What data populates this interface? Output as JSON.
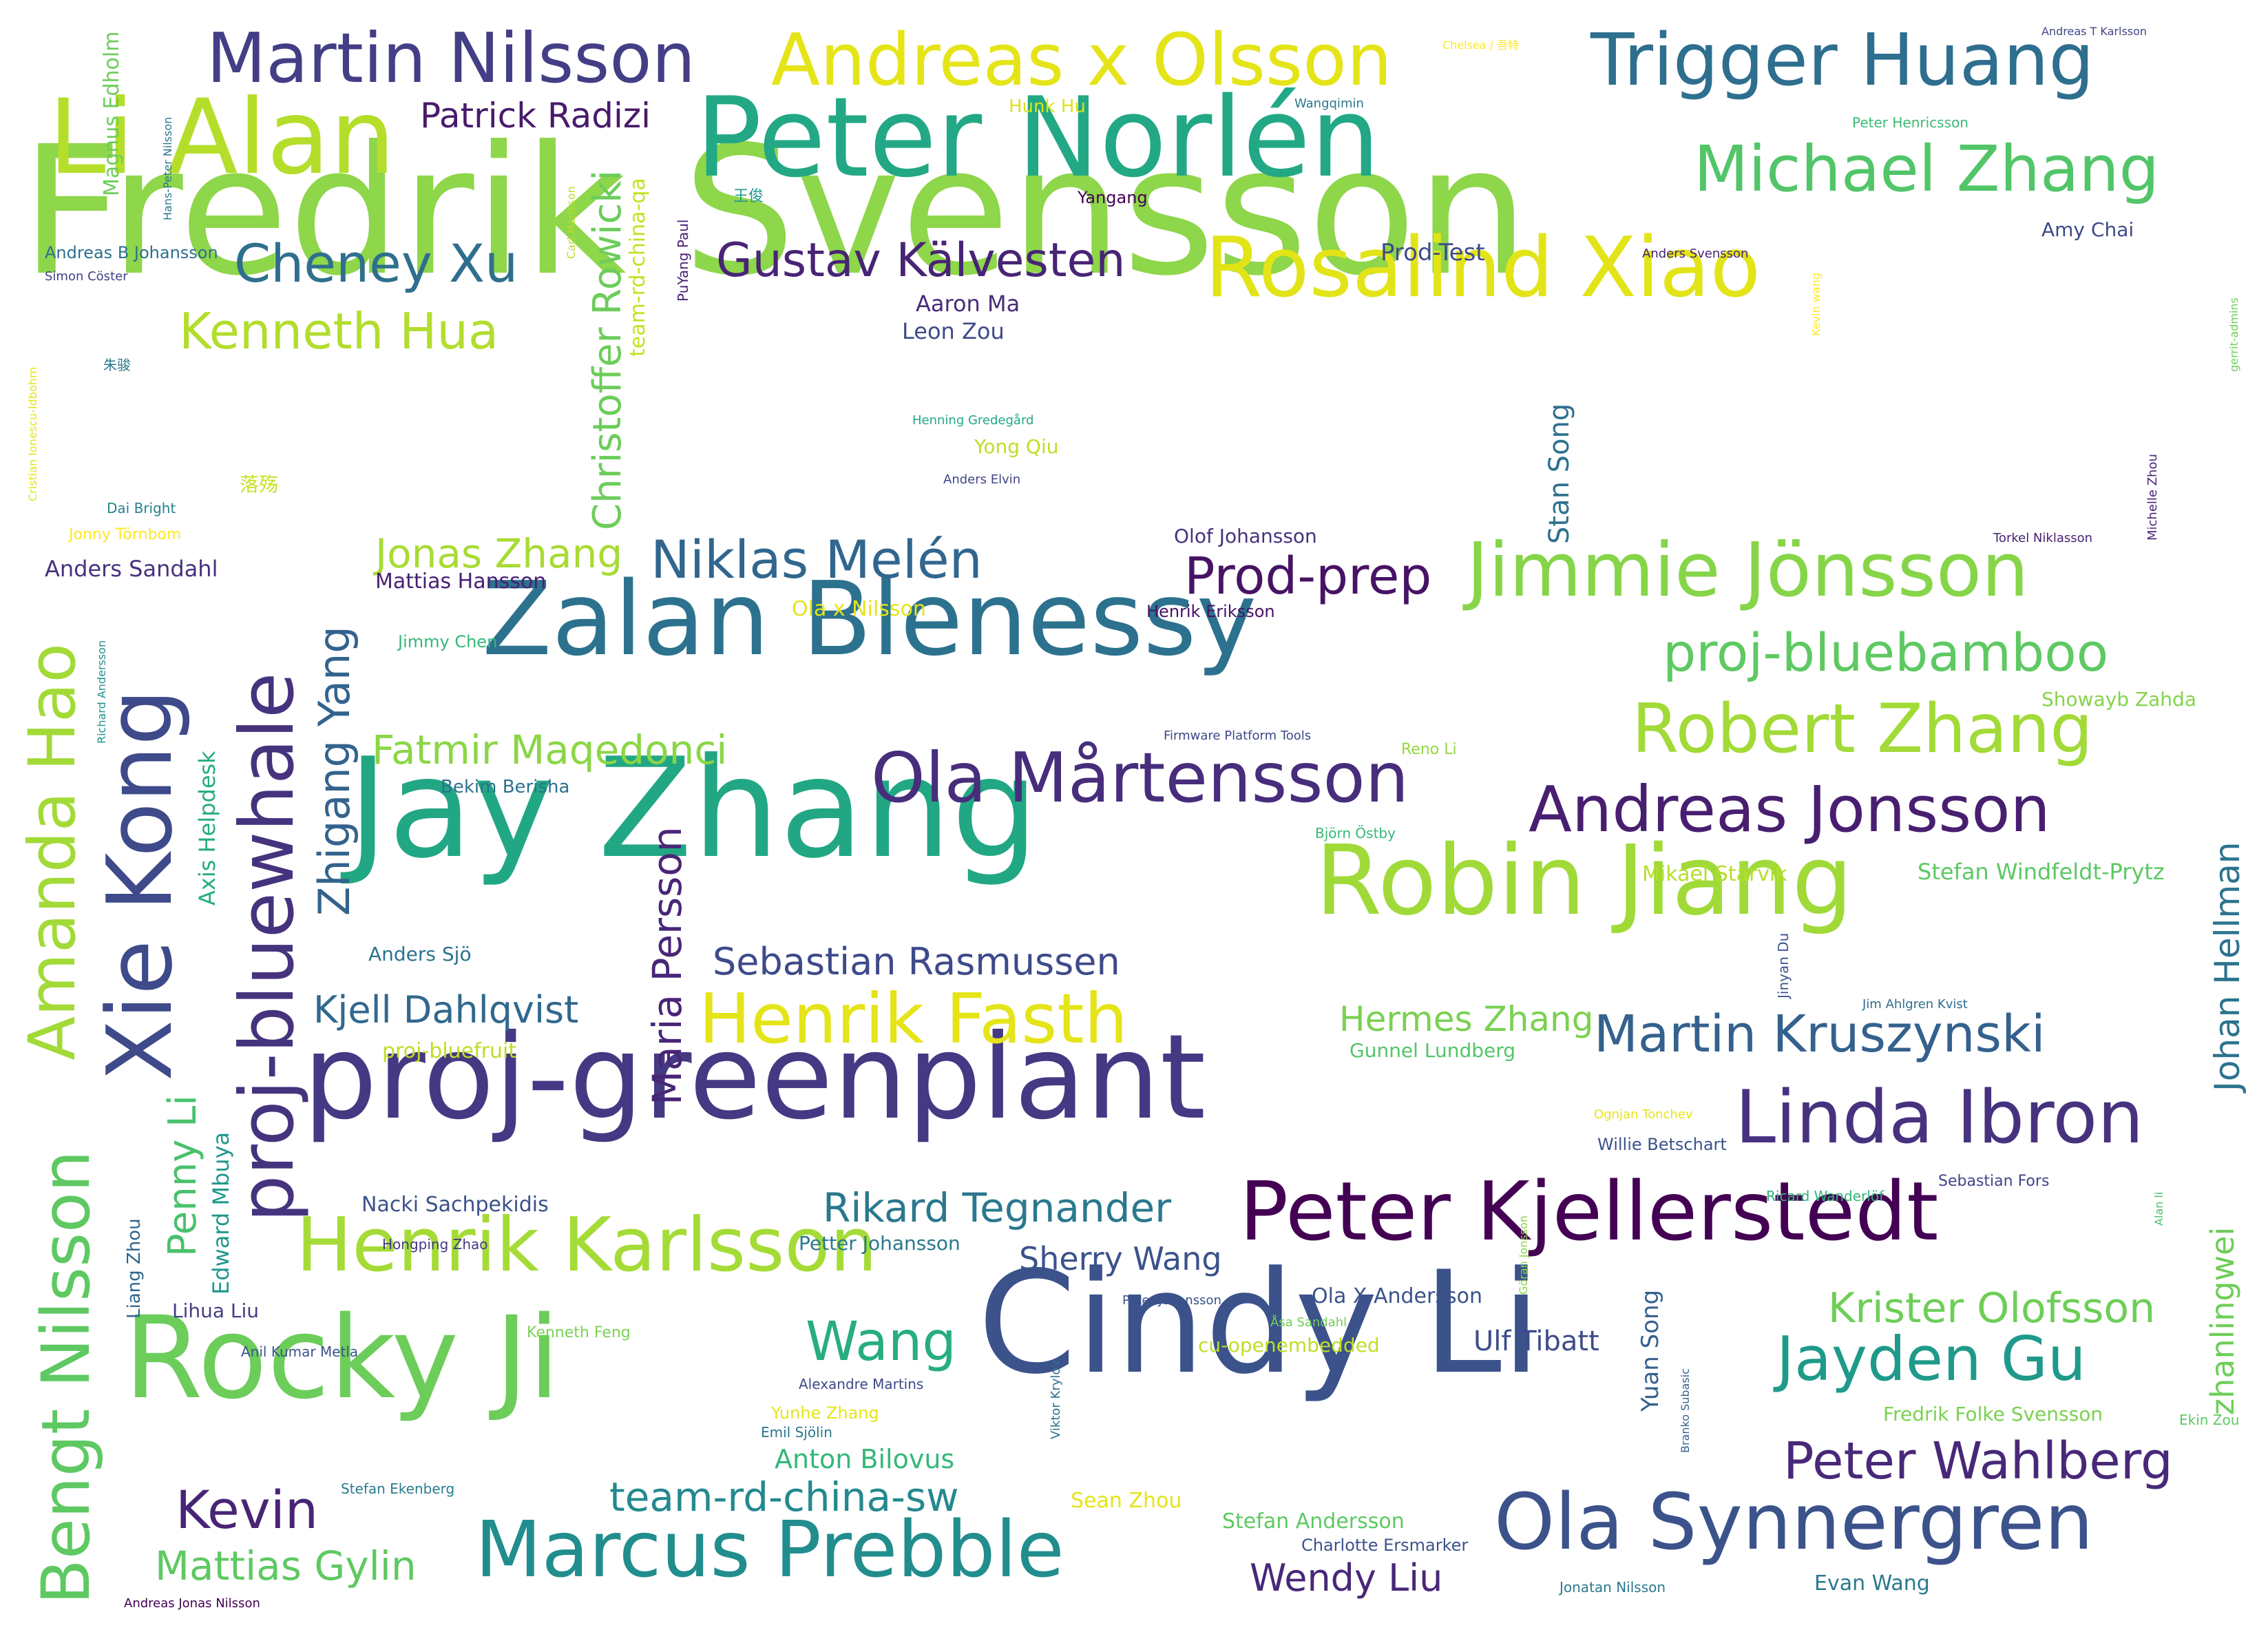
{
  "words": [
    {
      "text": "Fredrik Svensson",
      "color": "#8ed64a",
      "orient": "h"
    },
    {
      "text": "Jay Zhang",
      "color": "#22a784",
      "orient": "h"
    },
    {
      "text": "Cindy Li",
      "color": "#3b528b",
      "orient": "h"
    },
    {
      "text": "proj-greenplant",
      "color": "#443983",
      "orient": "h"
    },
    {
      "text": "Peter Norlén",
      "color": "#22a884",
      "orient": "h"
    },
    {
      "text": "Zalan Blenessy",
      "color": "#2c728e",
      "orient": "h"
    },
    {
      "text": "Rocky Ji",
      "color": "#6ccd5a",
      "orient": "h"
    },
    {
      "text": "Robin Jiang",
      "color": "#a0da39",
      "orient": "h"
    },
    {
      "text": "Li Alan",
      "color": "#b5de2b",
      "orient": "h"
    },
    {
      "text": "Rosalind Xiao",
      "color": "#e2e418",
      "orient": "h"
    },
    {
      "text": "Peter Kjellerstedt",
      "color": "#440154",
      "orient": "h"
    },
    {
      "text": "Marcus Prebble",
      "color": "#228d8d",
      "orient": "h"
    },
    {
      "text": "Ola Synnergren",
      "color": "#3b528b",
      "orient": "h"
    },
    {
      "text": "Jimmie Jönsson",
      "color": "#86d549",
      "orient": "h"
    },
    {
      "text": "Henrik Karlsson",
      "color": "#a5db36",
      "orient": "h"
    },
    {
      "text": "Martin Nilsson",
      "color": "#433e85",
      "orient": "h"
    },
    {
      "text": "Andreas x Olsson",
      "color": "#e5e419",
      "orient": "h"
    },
    {
      "text": "Trigger Huang",
      "color": "#2e6e8e",
      "orient": "h"
    },
    {
      "text": "Linda Ibron",
      "color": "#46327e",
      "orient": "h"
    },
    {
      "text": "Ola Mårtensson",
      "color": "#472d7b",
      "orient": "h"
    },
    {
      "text": "Henrik Fasth",
      "color": "#e5e419",
      "orient": "h"
    },
    {
      "text": "Robert Zhang",
      "color": "#a2da37",
      "orient": "h"
    },
    {
      "text": "Michael Zhang",
      "color": "#52c569",
      "orient": "h"
    },
    {
      "text": "Andreas Jonsson",
      "color": "#481f70",
      "orient": "h"
    },
    {
      "text": "Jayden Gu",
      "color": "#1f9a8a",
      "orient": "h"
    },
    {
      "text": "Niklas Melén",
      "color": "#31668e",
      "orient": "h"
    },
    {
      "text": "Cheney Xu",
      "color": "#2e6f8e",
      "orient": "h"
    },
    {
      "text": "Kenneth Hua",
      "color": "#b2dd2d",
      "orient": "h"
    },
    {
      "text": "Gustav Kälvesten",
      "color": "#482475",
      "orient": "h"
    },
    {
      "text": "Martin Kruszynski",
      "color": "#34618d",
      "orient": "h"
    },
    {
      "text": "Peter Wahlberg",
      "color": "#482878",
      "orient": "h"
    },
    {
      "text": "proj-bluebamboo",
      "color": "#5ec962",
      "orient": "h"
    },
    {
      "text": "Prod-prep",
      "color": "#471365",
      "orient": "h"
    },
    {
      "text": "Wang",
      "color": "#27ad81",
      "orient": "h"
    },
    {
      "text": "Kevin",
      "color": "#482475",
      "orient": "h"
    },
    {
      "text": "Fatmir Maqedonci",
      "color": "#8bd646",
      "orient": "h"
    },
    {
      "text": "Jonas Zhang",
      "color": "#a8db34",
      "orient": "h"
    },
    {
      "text": "Rikard Tegnander",
      "color": "#2a788e",
      "orient": "h"
    },
    {
      "text": "Sebastian Rasmussen",
      "color": "#3e4a89",
      "orient": "h"
    },
    {
      "text": "team-rd-china-sw",
      "color": "#23898e",
      "orient": "h"
    },
    {
      "text": "Mattias Gylin",
      "color": "#5ec962",
      "orient": "h"
    },
    {
      "text": "Kjell Dahlqvist",
      "color": "#31688e",
      "orient": "h"
    },
    {
      "text": "Krister Olofsson",
      "color": "#6ece58",
      "orient": "h"
    },
    {
      "text": "Hermes Zhang",
      "color": "#7ad151",
      "orient": "h"
    },
    {
      "text": "Wendy Liu",
      "color": "#482878",
      "orient": "h"
    },
    {
      "text": "Sherry Wang",
      "color": "#3b528b",
      "orient": "h"
    },
    {
      "text": "Patrick Radizi",
      "color": "#481a6c",
      "orient": "h"
    },
    {
      "text": "Ulf Tibatt",
      "color": "#3e4c8a",
      "orient": "h"
    },
    {
      "text": "Anton Bilovus",
      "color": "#35b779",
      "orient": "h"
    },
    {
      "text": "Penny Li",
      "color": "#4ac16d",
      "orient": "v"
    },
    {
      "text": "Edward Mbuya",
      "color": "#1f988b",
      "orient": "v"
    },
    {
      "text": "Bengt Nilsson",
      "color": "#5ec962",
      "orient": "v"
    },
    {
      "text": "Amanda Hao",
      "color": "#a2da37",
      "orient": "v"
    },
    {
      "text": "Xie Kong",
      "color": "#3e4a89",
      "orient": "v"
    },
    {
      "text": "proj-bluewhale",
      "color": "#46337e",
      "orient": "v"
    },
    {
      "text": "Zhigang Yang",
      "color": "#33638d",
      "orient": "v"
    },
    {
      "text": "Christoffer Rowicki",
      "color": "#6ccd5a",
      "orient": "v"
    },
    {
      "text": "Maria Persson",
      "color": "#482677",
      "orient": "v"
    },
    {
      "text": "Johan Hellman",
      "color": "#2c738e",
      "orient": "v"
    },
    {
      "text": "zhanlingwei",
      "color": "#6ece58",
      "orient": "v"
    },
    {
      "text": "Stan Song",
      "color": "#2d718e",
      "orient": "v"
    },
    {
      "text": "Yuan Song",
      "color": "#34608d",
      "orient": "v"
    },
    {
      "text": "Magnus Edholm",
      "color": "#6ccd5a",
      "orient": "v"
    },
    {
      "text": "Axis Helpdesk",
      "color": "#25ab82",
      "orient": "v"
    },
    {
      "text": "team-rd-china-qa",
      "color": "#c8e020",
      "orient": "v"
    },
    {
      "text": "Liang Zhou",
      "color": "#31668e",
      "orient": "v"
    },
    {
      "text": "Hans-Peter Nilsson",
      "color": "#2a778e",
      "orient": "v"
    },
    {
      "text": "Carl Hansson",
      "color": "#b8de29",
      "orient": "v"
    },
    {
      "text": "PuYang Paul",
      "color": "#482173",
      "orient": "v"
    },
    {
      "text": "Cristian Ionescu-Idbohrn",
      "color": "#e2e418",
      "orient": "v"
    },
    {
      "text": "Richard Andersson",
      "color": "#21918c",
      "orient": "v"
    },
    {
      "text": "Jinyan Du",
      "color": "#3b528b",
      "orient": "v"
    },
    {
      "text": "Göran Jonsson",
      "color": "#8bd646",
      "orient": "v"
    },
    {
      "text": "Viktor Krylov",
      "color": "#2d708e",
      "orient": "v"
    },
    {
      "text": "Branko Subasic",
      "color": "#355f8d",
      "orient": "v"
    },
    {
      "text": "Kevin wang",
      "color": "#fde725",
      "orient": "v"
    },
    {
      "text": "gerrit-admins",
      "color": "#6ece58",
      "orient": "v"
    },
    {
      "text": "Michelle Zhou",
      "color": "#482576",
      "orient": "v"
    },
    {
      "text": "Alan li",
      "color": "#4ac16d",
      "orient": "v"
    },
    {
      "text": "Hunk Hu",
      "color": "#dde318",
      "orient": "h"
    },
    {
      "text": "Chelsea / 吾特",
      "color": "#fde725",
      "orient": "h"
    },
    {
      "text": "Wangqimin",
      "color": "#2a788e",
      "orient": "h"
    },
    {
      "text": "Andreas T Karlsson",
      "color": "#414487",
      "orient": "h"
    },
    {
      "text": "Peter Henricsson",
      "color": "#3bbb75",
      "orient": "h"
    },
    {
      "text": "王俊",
      "color": "#1f988b",
      "orient": "h"
    },
    {
      "text": "Yangang",
      "color": "#440154",
      "orient": "h"
    },
    {
      "text": "Amy Chai",
      "color": "#3e4a89",
      "orient": "h"
    },
    {
      "text": "Andreas B Johansson",
      "color": "#2d708e",
      "orient": "h"
    },
    {
      "text": "Simon Cöster",
      "color": "#424086",
      "orient": "h"
    },
    {
      "text": "Prod-Test",
      "color": "#3e4a89",
      "orient": "h"
    },
    {
      "text": "Anders Svensson",
      "color": "#482374",
      "orient": "h"
    },
    {
      "text": "Aaron Ma",
      "color": "#472c7a",
      "orient": "h"
    },
    {
      "text": "Leon Zou",
      "color": "#3e4a89",
      "orient": "h"
    },
    {
      "text": "朱骏",
      "color": "#2a788e",
      "orient": "h"
    },
    {
      "text": "Henning Gredegård",
      "color": "#22a884",
      "orient": "h"
    },
    {
      "text": "Yong Qiu",
      "color": "#bddf26",
      "orient": "h"
    },
    {
      "text": "Anders Elvin",
      "color": "#414487",
      "orient": "h"
    },
    {
      "text": "落殇",
      "color": "#c8e020",
      "orient": "h"
    },
    {
      "text": "Dai Bright",
      "color": "#25838e",
      "orient": "h"
    },
    {
      "text": "Jonny Törnbom",
      "color": "#fde725",
      "orient": "h"
    },
    {
      "text": "Olof Johansson",
      "color": "#46327e",
      "orient": "h"
    },
    {
      "text": "Torkel Niklasson",
      "color": "#482071",
      "orient": "h"
    },
    {
      "text": "Anders Sandahl",
      "color": "#46327e",
      "orient": "h"
    },
    {
      "text": "Mattias Hansson",
      "color": "#482071",
      "orient": "h"
    },
    {
      "text": "Ola x Nilsson",
      "color": "#e5e419",
      "orient": "h"
    },
    {
      "text": "Henrik Eriksson",
      "color": "#471164",
      "orient": "h"
    },
    {
      "text": "Jimmy Chen",
      "color": "#35b779",
      "orient": "h"
    },
    {
      "text": "Showayb Zahda",
      "color": "#84d44b",
      "orient": "h"
    },
    {
      "text": "Firmware Platform Tools",
      "color": "#3f4788",
      "orient": "h"
    },
    {
      "text": "Reno Li",
      "color": "#93d741",
      "orient": "h"
    },
    {
      "text": "Bekim Berisha",
      "color": "#2c718e",
      "orient": "h"
    },
    {
      "text": "Björn Östby",
      "color": "#37b878",
      "orient": "h"
    },
    {
      "text": "Mikael Starvik",
      "color": "#b5de2b",
      "orient": "h"
    },
    {
      "text": "Stefan Windfeldt-Prytz",
      "color": "#5cc863",
      "orient": "h"
    },
    {
      "text": "Anders Sjö",
      "color": "#2b748e",
      "orient": "h"
    },
    {
      "text": "Jim Ahlgren Kvist",
      "color": "#2e6e8e",
      "orient": "h"
    },
    {
      "text": "proj-bluefruit",
      "color": "#bddf26",
      "orient": "h"
    },
    {
      "text": "Gunnel Lundberg",
      "color": "#52c569",
      "orient": "h"
    },
    {
      "text": "Ognjan Tonchev",
      "color": "#e7e419",
      "orient": "h"
    },
    {
      "text": "Willie Betschart",
      "color": "#3a548c",
      "orient": "h"
    },
    {
      "text": "Nacki Sachpekidis",
      "color": "#3b528b",
      "orient": "h"
    },
    {
      "text": "Sebastian Fors",
      "color": "#414487",
      "orient": "h"
    },
    {
      "text": "Ricard Wanderlöf",
      "color": "#31b57b",
      "orient": "h"
    },
    {
      "text": "Hongping Zhao",
      "color": "#443983",
      "orient": "h"
    },
    {
      "text": "Petter Johansson",
      "color": "#2a788e",
      "orient": "h"
    },
    {
      "text": "Lihua Liu",
      "color": "#433e85",
      "orient": "h"
    },
    {
      "text": "Peter Johansson",
      "color": "#3b528b",
      "orient": "h"
    },
    {
      "text": "Ola X Andersson",
      "color": "#3b528b",
      "orient": "h"
    },
    {
      "text": "Kenneth Feng",
      "color": "#7ad151",
      "orient": "h"
    },
    {
      "text": "Åsa Sandahl",
      "color": "#6ece58",
      "orient": "h"
    },
    {
      "text": "Anil Kumar Metla",
      "color": "#3b528b",
      "orient": "h"
    },
    {
      "text": "cu-openembedded",
      "color": "#bddf26",
      "orient": "h"
    },
    {
      "text": "Alexandre Martins",
      "color": "#3e4a89",
      "orient": "h"
    },
    {
      "text": "Yunhe Zhang",
      "color": "#e5e419",
      "orient": "h"
    },
    {
      "text": "Emil Sjölin",
      "color": "#2a788e",
      "orient": "h"
    },
    {
      "text": "Fredrik Folke Svensson",
      "color": "#7ad151",
      "orient": "h"
    },
    {
      "text": "Ekin Zou",
      "color": "#5ec962",
      "orient": "h"
    },
    {
      "text": "Stefan Ekenberg",
      "color": "#287d8e",
      "orient": "h"
    },
    {
      "text": "Sean Zhou",
      "color": "#e5e419",
      "orient": "h"
    },
    {
      "text": "Stefan Andersson",
      "color": "#5ec962",
      "orient": "h"
    },
    {
      "text": "Charlotte Ersmarker",
      "color": "#3b528b",
      "orient": "h"
    },
    {
      "text": "Jonatan Nilsson",
      "color": "#2a788e",
      "orient": "h"
    },
    {
      "text": "Evan Wang",
      "color": "#2a788e",
      "orient": "h"
    },
    {
      "text": "Andreas Jonas Nilsson",
      "color": "#440154",
      "orient": "h"
    }
  ]
}
